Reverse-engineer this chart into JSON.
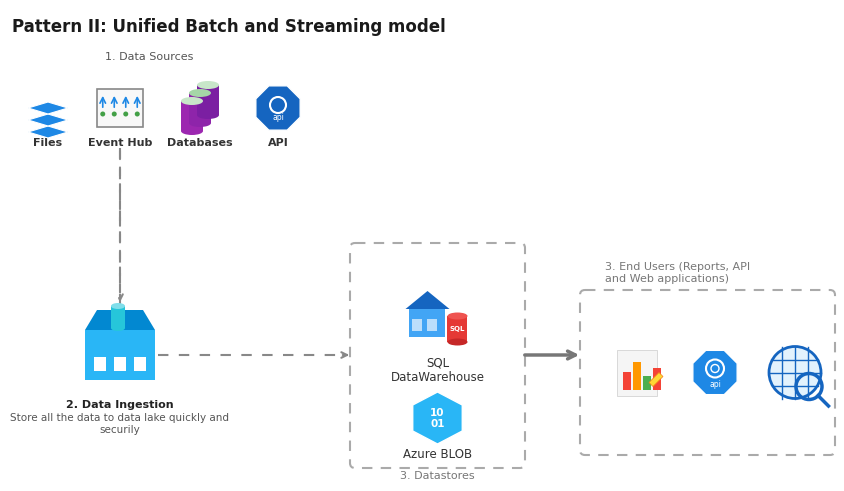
{
  "title": "Pattern II: Unified Batch and Streaming model",
  "bg_color": "#ffffff",
  "title_fontsize": 12,
  "title_color": "#1a1a1a",
  "label_color": "#555555",
  "label_bold_color": "#222222",
  "section1_label": "1. Data Sources",
  "section2_label": "2. Data Ingestion",
  "section2_sub": "Store all the data to data lake quickly and\nsecurily",
  "section3_label": "3. Datastores",
  "section4_label": "3. End Users (Reports, API\nand Web applications)",
  "blue_dark": "#1565c0",
  "blue_mid": "#1e88e5",
  "blue_light": "#42a5f5",
  "blue_pale": "#90caf9",
  "teal": "#26c6da",
  "teal_dark": "#00838f",
  "purple": "#7b1fa2",
  "purple_light": "#ab47bc",
  "green_yellow": "#c6d94e",
  "gray_dash": "#999999",
  "gray_box": "#bbbbbb",
  "orange": "#fb8c00",
  "yellow": "#fdd835",
  "red": "#e53935",
  "green": "#43a047"
}
